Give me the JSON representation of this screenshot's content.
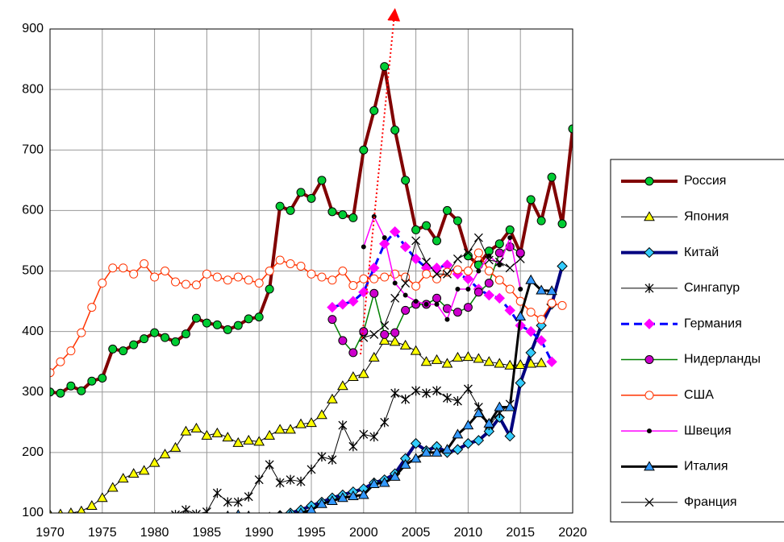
{
  "chart_data": {
    "type": "line",
    "x": [
      1970,
      1971,
      1972,
      1973,
      1974,
      1975,
      1976,
      1977,
      1978,
      1979,
      1980,
      1981,
      1982,
      1983,
      1984,
      1985,
      1986,
      1987,
      1988,
      1989,
      1990,
      1991,
      1992,
      1993,
      1994,
      1995,
      1996,
      1997,
      1998,
      1999,
      2000,
      2001,
      2002,
      2003,
      2004,
      2005,
      2006,
      2007,
      2008,
      2009,
      2010,
      2011,
      2012,
      2013,
      2014,
      2015,
      2016,
      2017,
      2018,
      2019,
      2020
    ],
    "xlim": [
      1970,
      2020
    ],
    "xticks": [
      1970,
      1975,
      1980,
      1985,
      1990,
      1995,
      2000,
      2005,
      2010,
      2015,
      2020
    ],
    "ylim": [
      100,
      900
    ],
    "yticks": [
      100,
      200,
      300,
      400,
      500,
      600,
      700,
      800,
      900
    ],
    "grid": true,
    "legend": "right",
    "series": [
      {
        "name": "Россия",
        "color": "#800000",
        "line_width": 4,
        "marker": "circle",
        "marker_color": "#00cc33",
        "marker_edge": "#000000",
        "values": [
          300,
          298,
          310,
          302,
          318,
          323,
          371,
          368,
          378,
          388,
          398,
          390,
          383,
          396,
          422,
          414,
          411,
          403,
          410,
          421,
          424,
          470,
          607,
          600,
          630,
          620,
          650,
          598,
          593,
          588,
          700,
          765,
          838,
          733,
          650,
          568,
          575,
          550,
          600,
          583,
          525,
          510,
          533,
          545,
          568,
          530,
          618,
          583,
          655,
          578,
          735
        ]
      },
      {
        "name": "Япония",
        "color": "#000000",
        "line_width": 1,
        "marker": "triangle",
        "marker_color": "#ffff00",
        "marker_edge": "#000000",
        "values": [
          97,
          98,
          100,
          103,
          112,
          125,
          142,
          157,
          165,
          170,
          183,
          197,
          208,
          235,
          240,
          228,
          232,
          225,
          216,
          220,
          218,
          228,
          238,
          238,
          247,
          249,
          262,
          288,
          310,
          325,
          330,
          357,
          385,
          383,
          377,
          368,
          350,
          353,
          347,
          357,
          358,
          355,
          350,
          347,
          344,
          345,
          347,
          348,
          null,
          null,
          null
        ]
      },
      {
        "name": "Китай",
        "color": "#000080",
        "line_width": 4,
        "marker": "diamond",
        "marker_color": "#33ccff",
        "marker_edge": "#000000",
        "values": [
          null,
          null,
          null,
          null,
          null,
          null,
          null,
          null,
          null,
          null,
          null,
          null,
          null,
          null,
          null,
          null,
          null,
          null,
          null,
          null,
          null,
          92,
          96,
          100,
          105,
          112,
          118,
          125,
          130,
          135,
          140,
          150,
          155,
          165,
          190,
          215,
          203,
          210,
          200,
          205,
          215,
          220,
          235,
          258,
          227,
          315,
          365,
          410,
          445,
          508,
          null
        ]
      },
      {
        "name": "Сингапур",
        "color": "#000000",
        "line_width": 1,
        "marker": "asterisk",
        "marker_color": "#000000",
        "marker_edge": "#000000",
        "values": [
          null,
          null,
          null,
          null,
          null,
          null,
          null,
          null,
          null,
          null,
          null,
          92,
          97,
          105,
          98,
          102,
          133,
          118,
          118,
          127,
          155,
          180,
          150,
          155,
          152,
          172,
          193,
          188,
          245,
          210,
          230,
          226,
          250,
          298,
          288,
          302,
          298,
          302,
          290,
          285,
          305,
          275,
          245,
          265,
          280,
          null,
          null,
          null,
          null,
          null,
          null
        ]
      },
      {
        "name": "Германия",
        "color": "#0000ff",
        "line_width": 3,
        "dash": "10,6",
        "marker": "diamond",
        "marker_color": "#ff00ff",
        "marker_edge": "#ff00ff",
        "values": [
          null,
          null,
          null,
          null,
          null,
          null,
          null,
          null,
          null,
          null,
          null,
          null,
          null,
          null,
          null,
          null,
          null,
          null,
          null,
          null,
          null,
          null,
          null,
          null,
          null,
          null,
          null,
          440,
          445,
          450,
          465,
          505,
          545,
          565,
          540,
          520,
          505,
          505,
          510,
          495,
          487,
          470,
          460,
          455,
          435,
          410,
          400,
          385,
          350,
          null,
          null
        ]
      },
      {
        "name": "Нидерланды",
        "color": "#008000",
        "line_width": 1.5,
        "marker": "circle",
        "marker_color": "#cc00cc",
        "marker_edge": "#000000",
        "values": [
          null,
          null,
          null,
          null,
          null,
          null,
          null,
          null,
          null,
          null,
          null,
          null,
          null,
          null,
          null,
          null,
          null,
          null,
          null,
          null,
          null,
          null,
          null,
          null,
          null,
          null,
          null,
          420,
          385,
          365,
          400,
          463,
          395,
          398,
          435,
          445,
          445,
          455,
          438,
          432,
          440,
          465,
          480,
          530,
          540,
          530,
          null,
          null,
          null,
          null,
          null
        ]
      },
      {
        "name": "США",
        "color": "#ff3300",
        "line_width": 1.5,
        "marker": "circle",
        "marker_color": "#ffffff",
        "marker_edge": "#ff3300",
        "values": [
          332,
          350,
          368,
          398,
          440,
          480,
          505,
          505,
          495,
          512,
          490,
          500,
          482,
          478,
          477,
          495,
          490,
          485,
          490,
          485,
          480,
          500,
          518,
          512,
          508,
          495,
          490,
          485,
          500,
          476,
          487,
          487,
          490,
          495,
          490,
          475,
          495,
          487,
          498,
          502,
          500,
          530,
          500,
          485,
          470,
          450,
          432,
          420,
          447,
          443,
          null
        ]
      },
      {
        "name": "Швеция",
        "color": "#ff00ff",
        "line_width": 1.5,
        "marker": "dot",
        "marker_color": "#000000",
        "marker_edge": "#000000",
        "values": [
          null,
          null,
          null,
          null,
          null,
          null,
          null,
          null,
          null,
          null,
          null,
          null,
          null,
          null,
          null,
          null,
          null,
          null,
          null,
          null,
          null,
          null,
          null,
          null,
          null,
          null,
          null,
          null,
          null,
          null,
          540,
          590,
          555,
          480,
          460,
          450,
          445,
          445,
          420,
          470,
          470,
          500,
          525,
          510,
          555,
          470,
          null,
          null,
          null,
          null,
          null
        ]
      },
      {
        "name": "Италия",
        "color": "#000000",
        "line_width": 3,
        "marker": "triangle",
        "marker_color": "#3399ff",
        "marker_edge": "#000000",
        "values": [
          null,
          null,
          null,
          null,
          null,
          null,
          null,
          null,
          null,
          null,
          null,
          null,
          null,
          null,
          null,
          null,
          null,
          95,
          97,
          95,
          92,
          93,
          95,
          97,
          100,
          105,
          115,
          120,
          125,
          128,
          130,
          148,
          150,
          160,
          180,
          190,
          200,
          200,
          205,
          230,
          245,
          265,
          248,
          275,
          275,
          425,
          485,
          468,
          467,
          null,
          null
        ]
      },
      {
        "name": "Франция",
        "color": "#000000",
        "line_width": 1,
        "marker": "x",
        "marker_color": "#000000",
        "marker_edge": "#000000",
        "values": [
          null,
          null,
          null,
          null,
          null,
          null,
          null,
          null,
          null,
          null,
          null,
          null,
          null,
          null,
          null,
          null,
          null,
          null,
          null,
          null,
          null,
          null,
          null,
          null,
          null,
          null,
          null,
          null,
          null,
          null,
          390,
          395,
          410,
          455,
          480,
          550,
          515,
          495,
          495,
          520,
          530,
          555,
          518,
          515,
          505,
          520,
          null,
          null,
          null,
          null,
          null
        ]
      }
    ]
  }
}
